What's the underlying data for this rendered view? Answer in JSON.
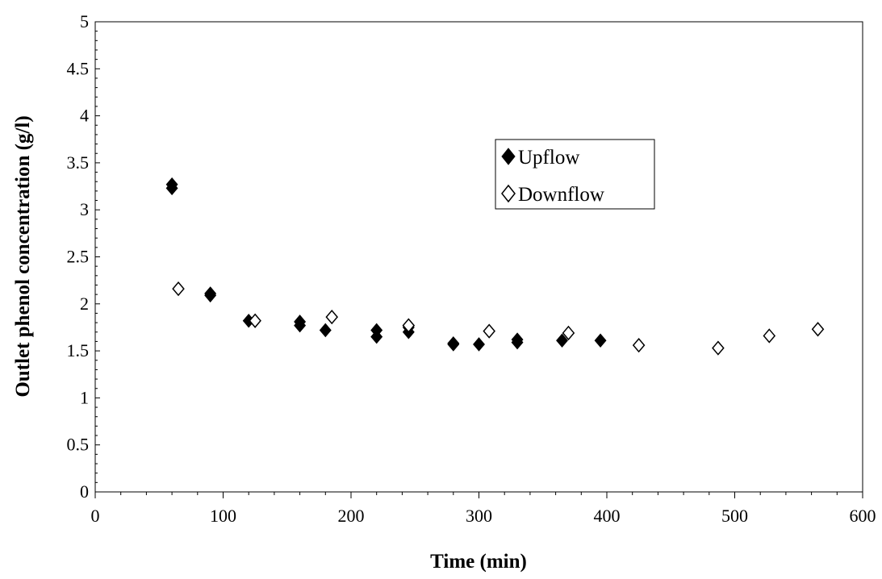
{
  "chart_data": {
    "type": "scatter",
    "title": "",
    "xlabel": "Time (min)",
    "ylabel": "Outlet phenol concentration (g/l)",
    "xlim": [
      0,
      600
    ],
    "ylim": [
      0,
      5
    ],
    "x_ticks": [
      0,
      100,
      200,
      300,
      400,
      500,
      600
    ],
    "y_ticks": [
      0,
      0.5,
      1,
      1.5,
      2,
      2.5,
      3,
      3.5,
      4,
      4.5,
      5
    ],
    "x_tick_labels": [
      "0",
      "100",
      "200",
      "300",
      "400",
      "500",
      "600"
    ],
    "y_tick_labels": [
      "0",
      "0.5",
      "1",
      "1.5",
      "2",
      "2.5",
      "3",
      "3.5",
      "4",
      "4.5",
      "5"
    ],
    "grid": false,
    "legend_position": "center-right",
    "series": [
      {
        "name": "Upflow",
        "marker": "filled-diamond",
        "color": "#000000",
        "points": [
          [
            60,
            3.27
          ],
          [
            60,
            3.23
          ],
          [
            90,
            2.11
          ],
          [
            90,
            2.09
          ],
          [
            120,
            1.82
          ],
          [
            160,
            1.81
          ],
          [
            160,
            1.77
          ],
          [
            180,
            1.72
          ],
          [
            220,
            1.72
          ],
          [
            220,
            1.65
          ],
          [
            245,
            1.75
          ],
          [
            245,
            1.7
          ],
          [
            280,
            1.58
          ],
          [
            280,
            1.57
          ],
          [
            300,
            1.57
          ],
          [
            330,
            1.62
          ],
          [
            330,
            1.59
          ],
          [
            365,
            1.61
          ],
          [
            395,
            1.61
          ]
        ]
      },
      {
        "name": "Downflow",
        "marker": "open-diamond",
        "color": "#000000",
        "points": [
          [
            65,
            2.16
          ],
          [
            125,
            1.82
          ],
          [
            185,
            1.86
          ],
          [
            245,
            1.77
          ],
          [
            308,
            1.71
          ],
          [
            370,
            1.69
          ],
          [
            425,
            1.56
          ],
          [
            487,
            1.53
          ],
          [
            527,
            1.66
          ],
          [
            565,
            1.73
          ]
        ]
      }
    ]
  }
}
